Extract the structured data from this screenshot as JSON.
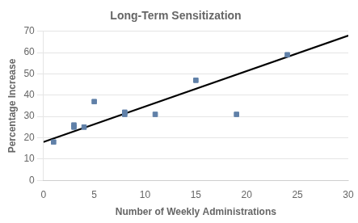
{
  "chart_data": {
    "type": "scatter",
    "title": "Long-Term Sensitization",
    "xlabel": "Number of Weekly Administrations",
    "ylabel": "Percentage Increase",
    "series": [
      {
        "type": "scatter",
        "color": "#6080a8",
        "marker": "square",
        "x": [
          1,
          3,
          3,
          4,
          5,
          8,
          8,
          11,
          15,
          19,
          24
        ],
        "values": [
          18,
          26,
          25,
          25,
          37,
          31,
          32,
          31,
          47,
          31,
          59
        ]
      },
      {
        "type": "line",
        "color": "#000000",
        "line_style": "solid",
        "x": [
          0,
          30
        ],
        "values": [
          18,
          68
        ]
      }
    ],
    "xlim": [
      0,
      30
    ],
    "ylim": [
      0,
      70
    ],
    "xticks": [
      0,
      5,
      10,
      15,
      20,
      25,
      30
    ],
    "yticks": [
      0,
      10,
      20,
      30,
      40,
      50,
      60,
      70
    ],
    "grid": "y"
  }
}
